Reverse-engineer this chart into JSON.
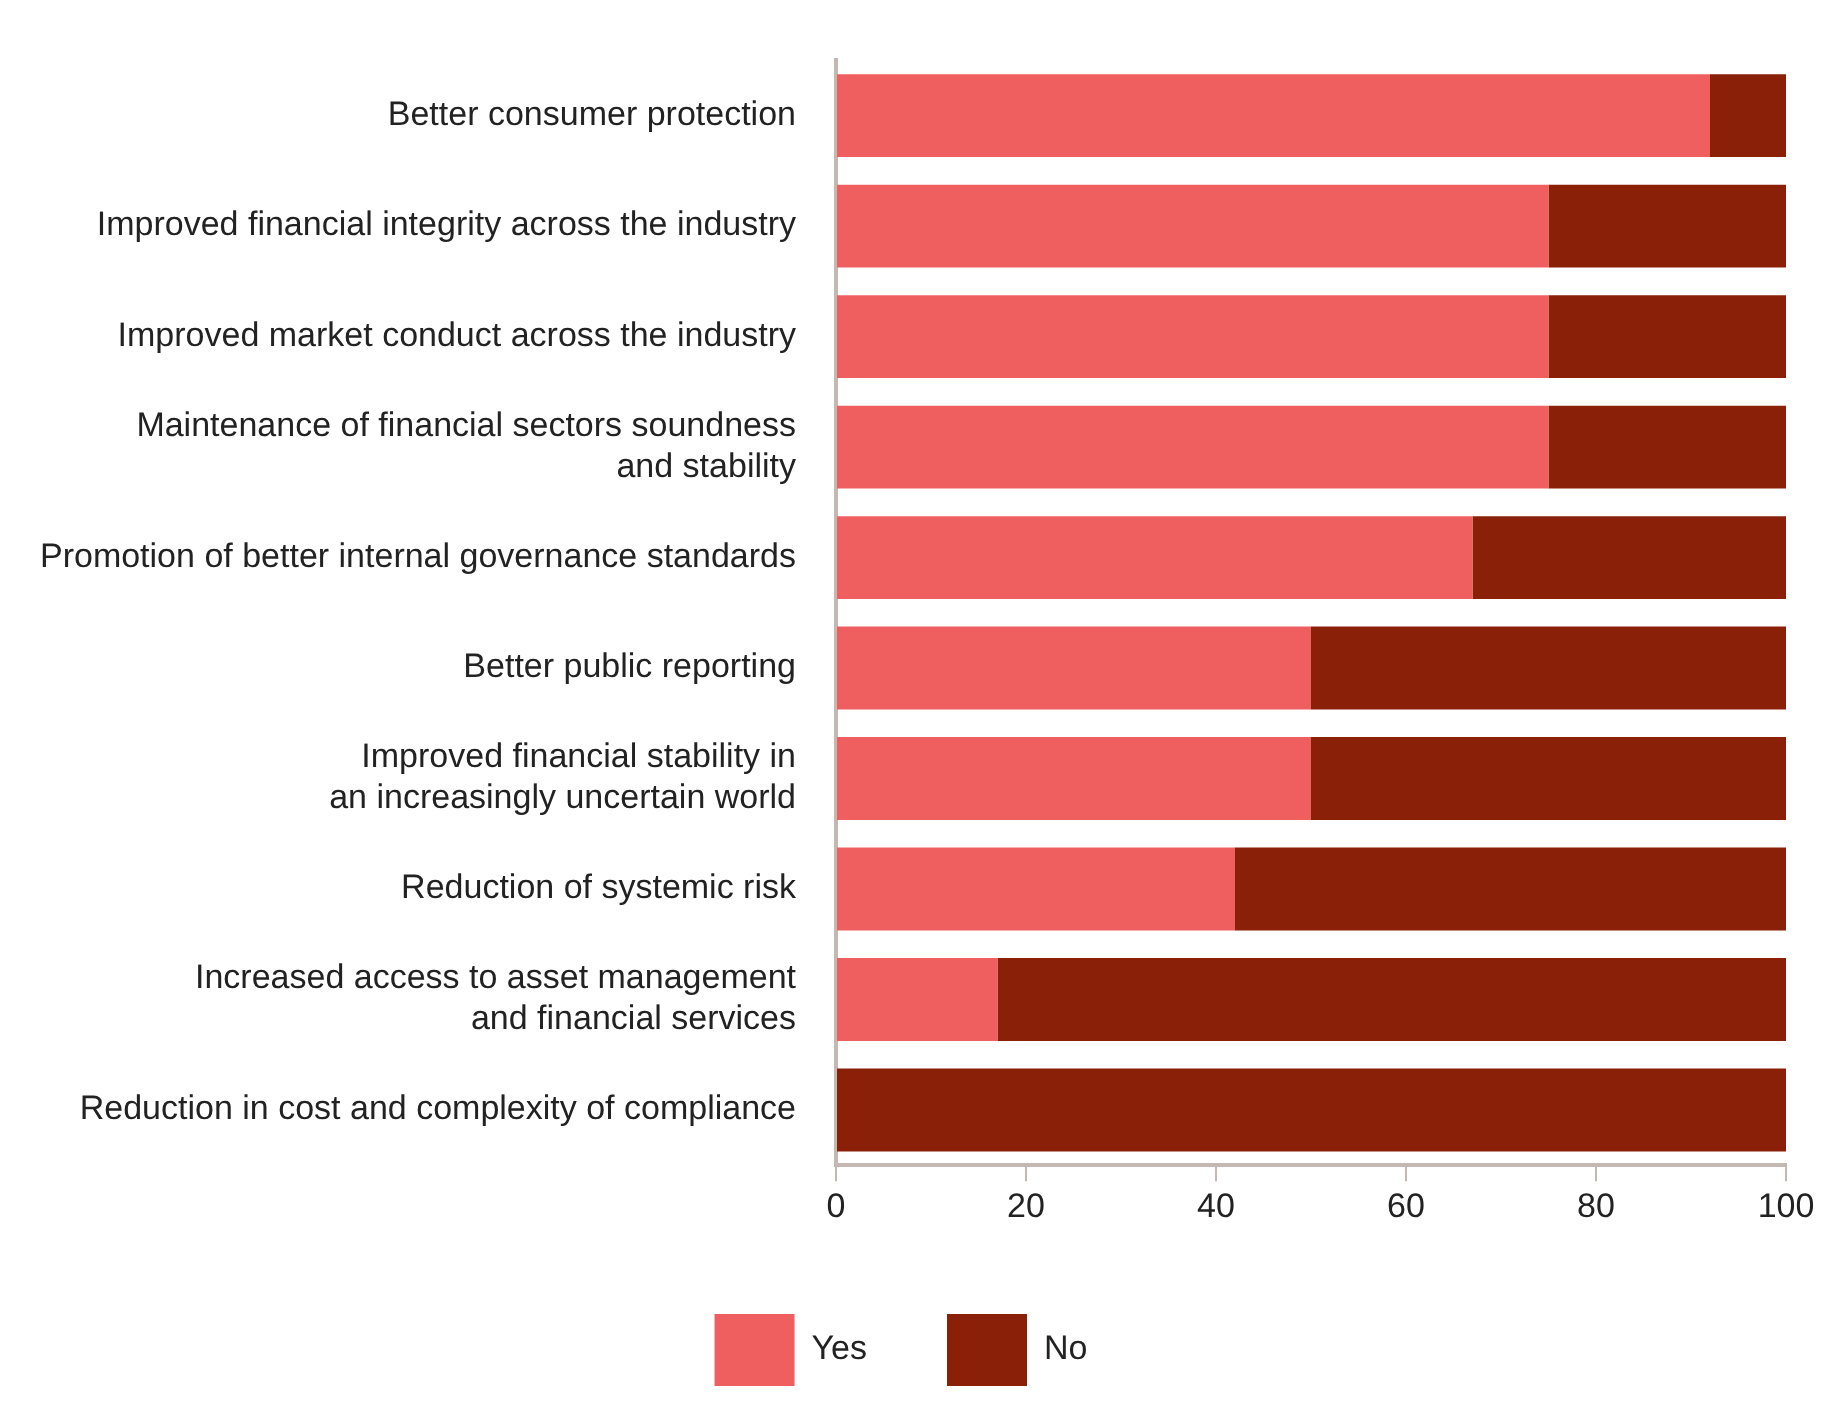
{
  "chart_data": {
    "type": "bar",
    "orientation": "horizontal",
    "stacked": true,
    "categories": [
      "Better consumer protection",
      "Improved financial integrity across the industry",
      "Improved market conduct across the industry",
      "Maintenance of financial sectors soundness\nand stability",
      "Promotion of better internal governance standards",
      "Better public reporting",
      "Improved financial stability in\nan increasingly uncertain world",
      "Reduction of systemic risk",
      "Increased access to asset management\nand financial services",
      "Reduction in cost and complexity of compliance"
    ],
    "series": [
      {
        "name": "Yes",
        "color": "#f05f5f",
        "values": [
          92,
          75,
          75,
          75,
          67,
          50,
          50,
          42,
          17,
          0
        ]
      },
      {
        "name": "No",
        "color": "#8b2008",
        "values": [
          8,
          25,
          25,
          25,
          33,
          50,
          50,
          58,
          83,
          100
        ]
      }
    ],
    "xlim": [
      0,
      100
    ],
    "xticks": [
      0,
      20,
      40,
      60,
      80,
      100
    ],
    "grid": false,
    "legend": "bottom"
  }
}
